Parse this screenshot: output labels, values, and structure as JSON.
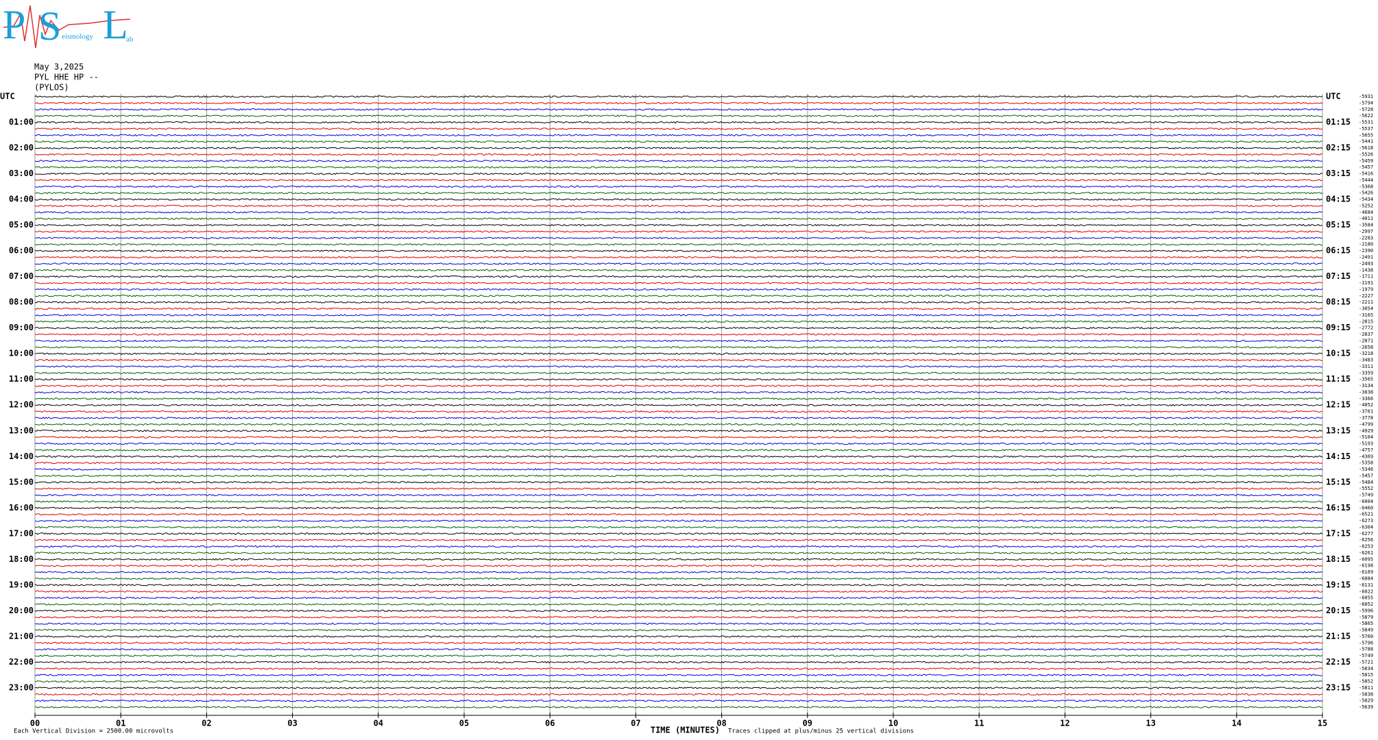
{
  "chart_data": {
    "type": "helicorder",
    "logo": {
      "letters": [
        "P",
        "S",
        "L"
      ],
      "small": [
        "eismology",
        "ab"
      ]
    },
    "date": "May 3,2025",
    "station": "PYL HHE HP --",
    "site": "(PYLOS)",
    "left_labels": [
      "UTC",
      "01:00",
      "02:00",
      "03:00",
      "04:00",
      "05:00",
      "06:00",
      "07:00",
      "08:00",
      "09:00",
      "10:00",
      "11:00",
      "12:00",
      "13:00",
      "14:00",
      "15:00",
      "16:00",
      "17:00",
      "18:00",
      "19:00",
      "20:00",
      "21:00",
      "22:00",
      "23:00"
    ],
    "right_labels": [
      "UTC",
      "01:15",
      "02:15",
      "03:15",
      "04:15",
      "05:15",
      "06:15",
      "07:15",
      "08:15",
      "09:15",
      "10:15",
      "11:15",
      "12:15",
      "13:15",
      "14:15",
      "15:15",
      "16:15",
      "17:15",
      "18:15",
      "19:15",
      "20:15",
      "21:15",
      "22:15",
      "23:15"
    ],
    "trace_offsets": [
      -5931,
      -5794,
      -5728,
      -5622,
      -5531,
      -5537,
      -5655,
      -5441,
      -5618,
      -5526,
      -5459,
      -5457,
      -5416,
      -5444,
      -5368,
      -5426,
      -5434,
      -5252,
      -4684,
      -4011,
      -3584,
      -2997,
      -2283,
      -2180,
      -2390,
      -2491,
      -2493,
      -1438,
      -1711,
      -1191,
      -1979,
      -2227,
      -2211,
      -3054,
      -3165,
      -2815,
      -2772,
      -2837,
      -2871,
      -2658,
      -3218,
      -3483,
      -3311,
      -3359,
      -3565,
      -3134,
      -3838,
      -3366,
      -4052,
      -3761,
      -3778,
      -4799,
      -4929,
      -5104,
      -5193,
      -4757,
      -4369,
      -5358,
      -5346,
      -5457,
      -5484,
      -5552,
      -5749,
      -6004,
      -6460,
      -6521,
      -6273,
      -6304,
      -6277,
      -6256,
      -6253,
      -6261,
      -6095,
      -6198,
      -6169,
      -6084,
      -6131,
      -6022,
      -6055,
      -6052,
      -5996,
      -5879,
      -5865,
      -5849,
      -5760,
      -5796,
      -5788,
      -5749,
      -5721,
      -5834,
      -5815,
      -5852,
      -5811,
      -5838,
      -5829,
      -5639
    ],
    "colors": [
      "#000000",
      "#e00000",
      "#0000e0",
      "#006000"
    ],
    "xlim": [
      0,
      15
    ],
    "xticks": [
      {
        "value": 0,
        "label": "00"
      },
      {
        "value": 1,
        "label": "01"
      },
      {
        "value": 2,
        "label": "02"
      },
      {
        "value": 3,
        "label": "03"
      },
      {
        "value": 4,
        "label": "04"
      },
      {
        "value": 5,
        "label": "05"
      },
      {
        "value": 6,
        "label": "06"
      },
      {
        "value": 7,
        "label": "07"
      },
      {
        "value": 8,
        "label": "08"
      },
      {
        "value": 9,
        "label": "09"
      },
      {
        "value": 10,
        "label": "10"
      },
      {
        "value": 11,
        "label": "11"
      },
      {
        "value": 12,
        "label": "12"
      },
      {
        "value": 13,
        "label": "13"
      },
      {
        "value": 14,
        "label": "14"
      },
      {
        "value": 15,
        "label": "15"
      }
    ],
    "xlabel": "TIME (MINUTES)",
    "scale_note": "Each Vertical Division = 2500.00 microvolts",
    "clip_note": "Traces clipped at plus/minus 25 vertical divisions",
    "grid": true
  }
}
